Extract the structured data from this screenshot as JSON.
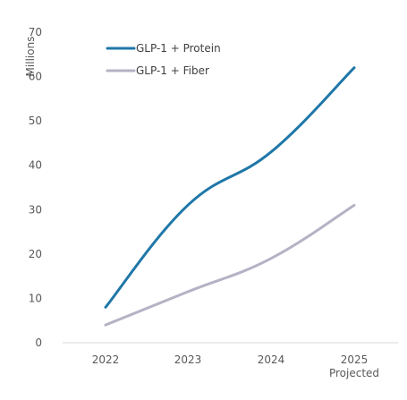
{
  "chart_data": {
    "type": "line",
    "ylabel": "Millions",
    "xlabel": "",
    "ylim": [
      0,
      70
    ],
    "yticks": [
      0,
      10,
      20,
      30,
      40,
      50,
      60,
      70
    ],
    "categories": [
      [
        "2022"
      ],
      [
        "2023"
      ],
      [
        "2024"
      ],
      [
        "2025",
        "Projected"
      ]
    ],
    "series": [
      {
        "name": "GLP-1 + Protein",
        "color": "#1f77a8",
        "values": [
          8,
          31,
          43,
          62
        ]
      },
      {
        "name": "GLP-1 + Fiber",
        "color": "#b4b2c4",
        "values": [
          4,
          11.5,
          19,
          31
        ]
      }
    ],
    "legend": "top-left",
    "grid": false,
    "axis_color": "#d9d9d9"
  }
}
